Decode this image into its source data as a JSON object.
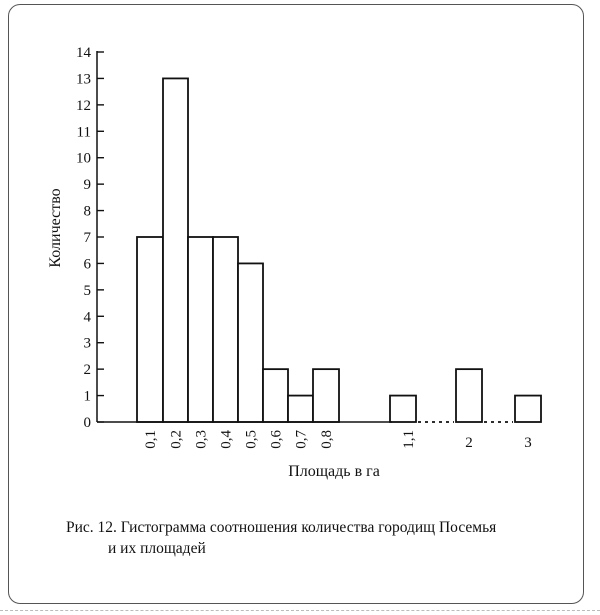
{
  "figure": {
    "caption_line1": "Рис. 12. Гистограмма соотношения количества городищ Посемья",
    "caption_line2": "и их площадей"
  },
  "chart_data": {
    "type": "bar",
    "title": "",
    "xlabel": "Площадь в га",
    "ylabel": "Количество",
    "ylim": [
      0,
      14
    ],
    "yticks": [
      0,
      1,
      2,
      3,
      4,
      5,
      6,
      7,
      8,
      9,
      10,
      11,
      12,
      13,
      14
    ],
    "grid": false,
    "legend": "none",
    "categories": [
      "0,1",
      "0,2",
      "0,3",
      "0,4",
      "0,5",
      "0,6",
      "0,7",
      "0,8",
      "1,1",
      "2",
      "3"
    ],
    "values": [
      7,
      13,
      7,
      7,
      6,
      2,
      1,
      2,
      1,
      2,
      1
    ],
    "axis_breaks": [
      [
        "1,1",
        "2"
      ],
      [
        "2",
        "3"
      ]
    ],
    "bar_color": "#ffffff",
    "edge_color": "#111111"
  }
}
